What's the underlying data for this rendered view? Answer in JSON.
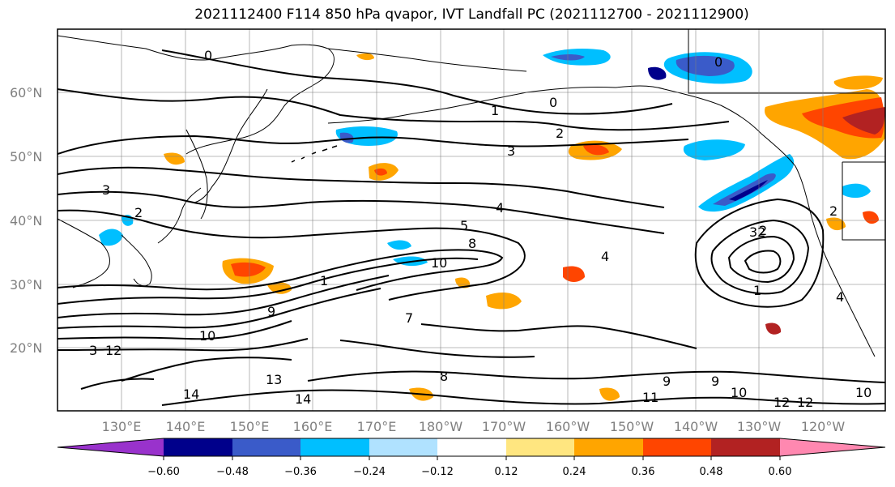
{
  "title": "2021112400 F114 850 hPa qvapor, IVT Landfall PC (2021112700 - 2021112900)",
  "lat_labels": [
    "60°N",
    "50°N",
    "40°N",
    "30°N",
    "20°N"
  ],
  "lon_labels": [
    "130°E",
    "140°E",
    "150°E",
    "160°E",
    "170°E",
    "180°W",
    "170°W",
    "160°W",
    "150°W",
    "140°W",
    "130°W",
    "120°W"
  ],
  "colorbar": {
    "ticks": [
      "−0.60",
      "−0.48",
      "−0.36",
      "−0.24",
      "−0.12",
      "0.12",
      "0.24",
      "0.36",
      "0.48",
      "0.60"
    ],
    "colors": [
      "#9932cc",
      "#00008b",
      "#3a5bc9",
      "#00bfff",
      "#b0e2ff",
      "#ffffff",
      "#ffe680",
      "#ffa500",
      "#ff4500",
      "#b22222",
      "#ff88b0"
    ]
  },
  "contour_labels": [
    "0",
    "0",
    "0",
    "1",
    "1",
    "2",
    "2",
    "2",
    "3",
    "3",
    "4",
    "4",
    "4",
    "5",
    "7",
    "8",
    "8",
    "9",
    "9",
    "9",
    "10",
    "10",
    "10",
    "10",
    "11",
    "12",
    "12",
    "12",
    "13",
    "14",
    "14",
    "1",
    "2",
    "3",
    "32"
  ],
  "colors": {
    "positive": "#ffa500",
    "negative": "#00bfff",
    "contour": "#000000",
    "land": "#000000"
  }
}
